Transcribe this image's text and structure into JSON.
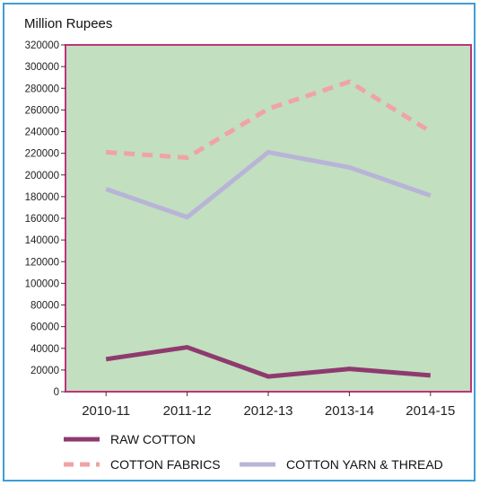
{
  "chart_data": {
    "type": "line",
    "unit_label": "Million Rupees",
    "categories": [
      "2010-11",
      "2011-12",
      "2012-13",
      "2013-14",
      "2014-15"
    ],
    "ylim": [
      0,
      320000
    ],
    "y_ticks": [
      0,
      20000,
      40000,
      60000,
      80000,
      100000,
      120000,
      140000,
      160000,
      180000,
      200000,
      220000,
      240000,
      260000,
      280000,
      300000,
      320000
    ],
    "grid": false,
    "legend_position": "bottom",
    "plot_background": "#c2dfbf",
    "plot_border_color": "#c0337a",
    "series": [
      {
        "name": "RAW COTTON",
        "values": [
          30000,
          41000,
          14000,
          21000,
          15000
        ],
        "color": "#8e3a6f",
        "style": "solid"
      },
      {
        "name": "COTTON FABRICS",
        "values": [
          221000,
          216000,
          261000,
          286000,
          240000
        ],
        "color": "#f0a3a3",
        "style": "dashed"
      },
      {
        "name": "COTTON YARN & THREAD",
        "values": [
          187000,
          161000,
          221000,
          207000,
          181000
        ],
        "color": "#b8b4d8",
        "style": "solid"
      }
    ]
  }
}
